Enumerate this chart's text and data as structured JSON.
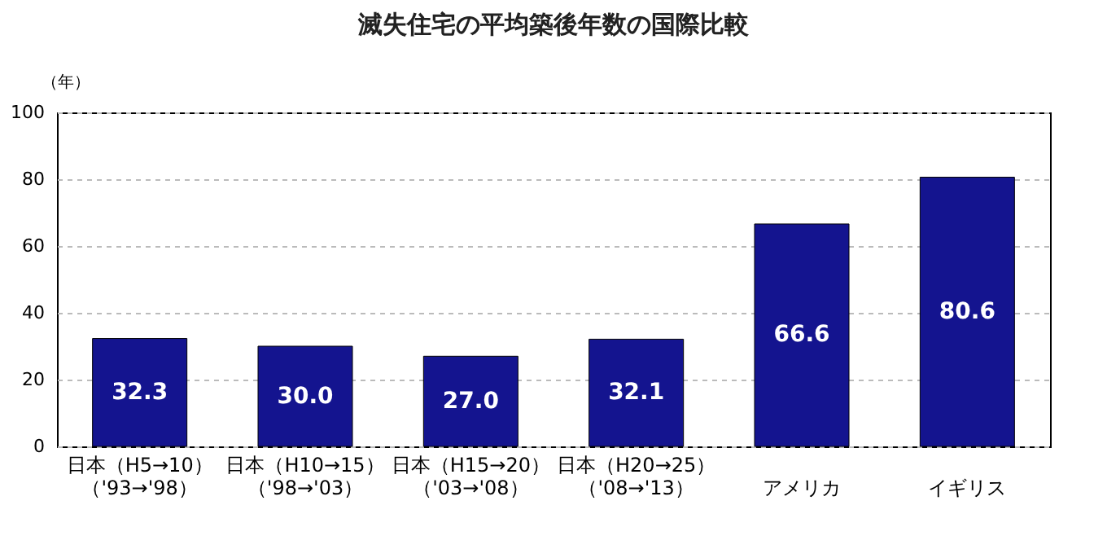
{
  "chart_data": {
    "type": "bar",
    "title": "滅失住宅の平均築後年数の国際比較",
    "ylabel": "（年）",
    "categories": [
      "日本（H5→10）（'93→'98）",
      "日本（H10→15）（'98→'03）",
      "日本（H15→20）（'03→'08）",
      "日本（H20→25）（'08→'13）",
      "アメリカ",
      "イギリス"
    ],
    "values": [
      32.3,
      30.0,
      27.0,
      32.1,
      66.6,
      80.6
    ],
    "value_labels": [
      "32.3",
      "30.0",
      "27.0",
      "32.1",
      "66.6",
      "80.6"
    ],
    "color": "#14148f",
    "ylim": [
      0,
      100
    ],
    "yticks": [
      0,
      20,
      40,
      60,
      80,
      100
    ],
    "grid": "y"
  }
}
